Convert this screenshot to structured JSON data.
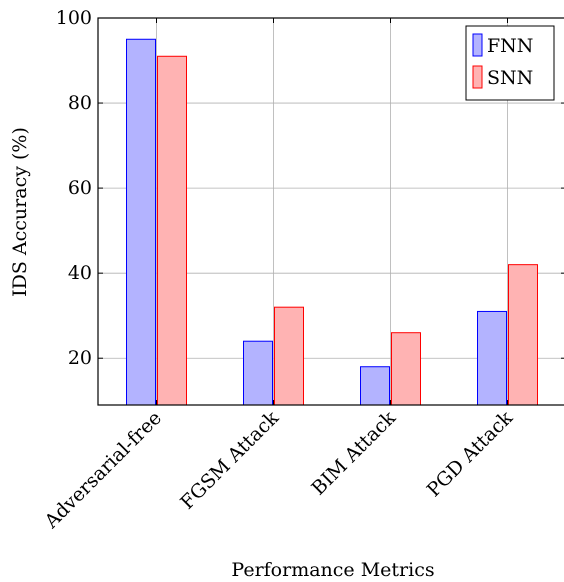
{
  "chart_data": {
    "type": "bar",
    "title": "",
    "xlabel": "Performance Metrics",
    "ylabel": "IDS Accuracy (%)",
    "categories": [
      "Adversarial-free",
      "FGSM Attack",
      "BIM Attack",
      "PGD Attack"
    ],
    "series": [
      {
        "name": "FNN",
        "values": [
          95,
          24,
          18,
          31
        ],
        "fill": "#b3b3ff",
        "stroke": "#0000ff"
      },
      {
        "name": "SNN",
        "values": [
          91,
          32,
          26,
          42
        ],
        "fill": "#ffb3b3",
        "stroke": "#ff0000"
      }
    ],
    "ylim": [
      9,
      100
    ],
    "yticks": [
      20,
      40,
      60,
      80,
      100
    ],
    "grid": true,
    "legend_position": "top-right",
    "grid_color": "#b0b0b0"
  }
}
